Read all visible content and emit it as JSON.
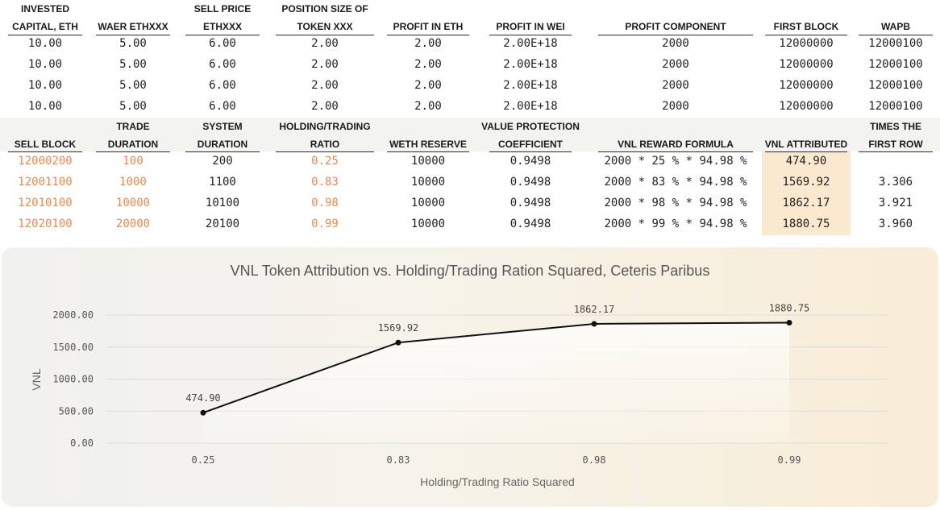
{
  "top_table": {
    "headers": [
      [
        "INVESTED",
        "CAPITAL, ETH"
      ],
      [
        "",
        "WAER ETHXXX"
      ],
      [
        "SELL PRICE",
        "ETHXXX"
      ],
      [
        "POSITION SIZE OF",
        "TOKEN XXX"
      ],
      [
        "",
        "PROFIT IN ETH"
      ],
      [
        "",
        "PROFIT IN WEI"
      ],
      [
        "",
        "PROFIT COMPONENT"
      ],
      [
        "",
        "FIRST BLOCK"
      ],
      [
        "",
        "WAPB"
      ]
    ],
    "rows": [
      [
        "10.00",
        "5.00",
        "6.00",
        "2.00",
        "2.00",
        "2.00E+18",
        "2000",
        "12000000",
        "12000100"
      ],
      [
        "10.00",
        "5.00",
        "6.00",
        "2.00",
        "2.00",
        "2.00E+18",
        "2000",
        "12000000",
        "12000100"
      ],
      [
        "10.00",
        "5.00",
        "6.00",
        "2.00",
        "2.00",
        "2.00E+18",
        "2000",
        "12000000",
        "12000100"
      ],
      [
        "10.00",
        "5.00",
        "6.00",
        "2.00",
        "2.00",
        "2.00E+18",
        "2000",
        "12000000",
        "12000100"
      ]
    ]
  },
  "bottom_table": {
    "headers": [
      [
        "",
        "SELL BLOCK"
      ],
      [
        "TRADE",
        "DURATION"
      ],
      [
        "SYSTEM",
        "DURATION"
      ],
      [
        "HOLDING/TRADING",
        "RATIO"
      ],
      [
        "",
        "WETH RESERVE"
      ],
      [
        "VALUE PROTECTION",
        "COEFFICIENT"
      ],
      [
        "",
        "VNL REWARD FORMULA"
      ],
      [
        "",
        "VNL ATTRIBUTED"
      ],
      [
        "TIMES THE",
        "FIRST ROW"
      ]
    ],
    "rows": [
      [
        "12000200",
        "100",
        "200",
        "0.25",
        "10000",
        "0.9498",
        "2000 * 25 % * 94.98 %",
        "474.90",
        ""
      ],
      [
        "12001100",
        "1000",
        "1100",
        "0.83",
        "10000",
        "0.9498",
        "2000 * 83 % * 94.98 %",
        "1569.92",
        "3.306"
      ],
      [
        "12010100",
        "10000",
        "10100",
        "0.98",
        "10000",
        "0.9498",
        "2000 * 98 % * 94.98 %",
        "1862.17",
        "3.921"
      ],
      [
        "12020100",
        "20000",
        "20100",
        "0.99",
        "10000",
        "0.9498",
        "2000 * 99 % * 94.98 %",
        "1880.75",
        "3.960"
      ]
    ]
  },
  "colors": {
    "accent_orange": "#e8894b",
    "highlight": "#fbe9cf",
    "band": "#f3f3ef"
  },
  "chart_data": {
    "type": "line",
    "title": "VNL Token Attribution vs. Holding/Trading Ration Squared, Ceteris Paribus",
    "xlabel": "Holding/Trading Ratio Squared",
    "ylabel": "VNL",
    "categories": [
      "0.25",
      "0.83",
      "0.98",
      "0.99"
    ],
    "values": [
      474.9,
      1569.92,
      1862.17,
      1880.75
    ],
    "value_labels": [
      "474.90",
      "1569.92",
      "1862.17",
      "1880.75"
    ],
    "yticks": [
      "0.00",
      "500.00",
      "1000.00",
      "1500.00",
      "2000.00"
    ],
    "ylim": [
      0,
      2000
    ],
    "grid": true,
    "legend": "none"
  }
}
